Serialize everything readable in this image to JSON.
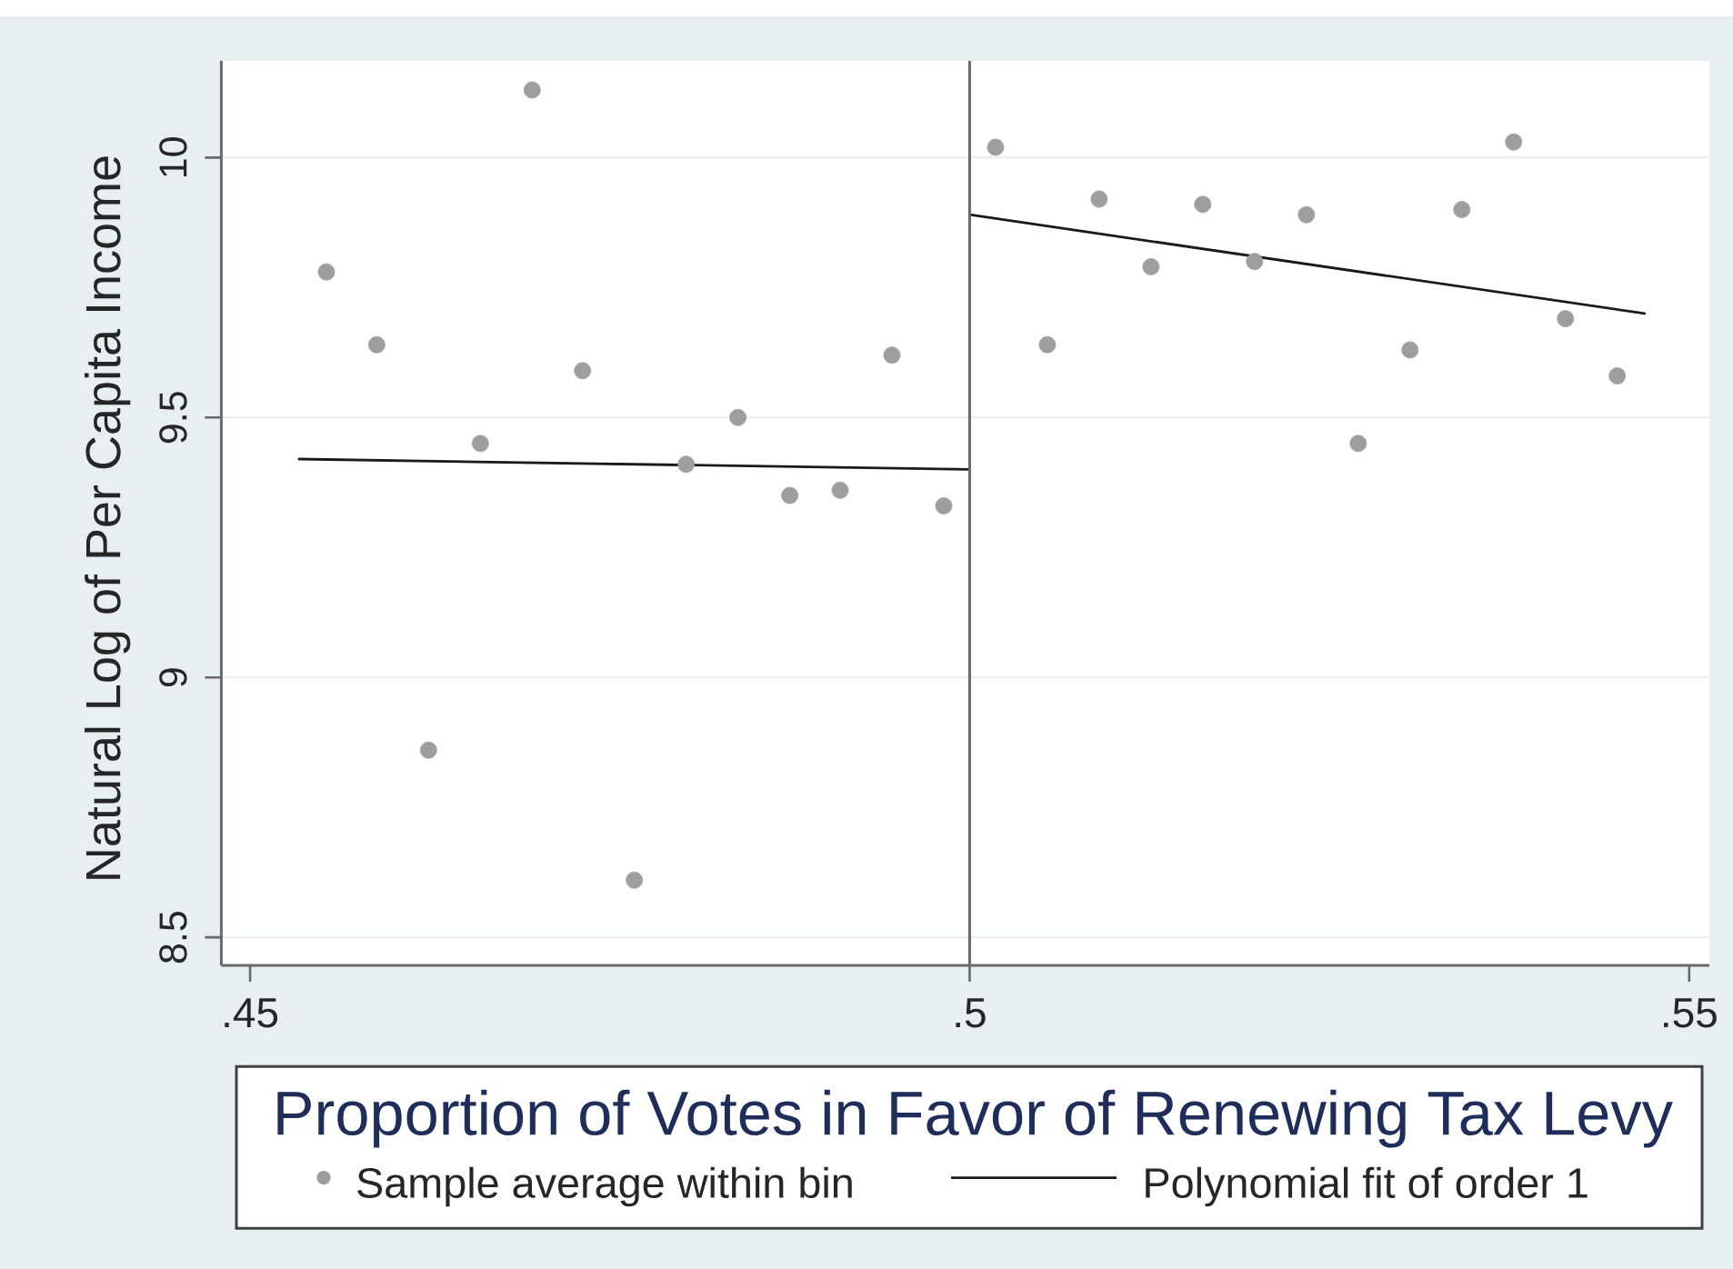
{
  "chart_data": {
    "type": "scatter",
    "ylabel": "Natural Log of Per Capita Income",
    "legend_title": "Proportion of Votes in Favor of Renewing Tax Levy",
    "series": [
      {
        "name": "Sample average within bin",
        "color": "#9e9e9e",
        "marker": "circle",
        "x": [
          0.4553,
          0.4588,
          0.4624,
          0.466,
          0.4696,
          0.4731,
          0.4767,
          0.4803,
          0.4839,
          0.4875,
          0.491,
          0.4946,
          0.4982,
          0.5018,
          0.5054,
          0.509,
          0.5126,
          0.5162,
          0.5198,
          0.5234,
          0.527,
          0.5306,
          0.5342,
          0.5378,
          0.5414,
          0.545
        ],
        "values": [
          9.78,
          9.64,
          8.86,
          9.45,
          10.13,
          9.59,
          8.61,
          9.41,
          9.5,
          9.35,
          9.36,
          9.62,
          9.33,
          10.02,
          9.64,
          9.92,
          9.79,
          9.91,
          9.8,
          9.89,
          9.45,
          9.63,
          9.9,
          10.03,
          9.69,
          9.58
        ]
      },
      {
        "name": "Polynomial fit of order 1",
        "type": "line",
        "color": "#1a1a1a",
        "marker": "none",
        "x": [
          0.4534,
          0.5
        ],
        "values": [
          9.42,
          9.4
        ]
      },
      {
        "type": "line",
        "color": "#1a1a1a",
        "marker": "none",
        "x": [
          0.5,
          0.5469
        ],
        "values": [
          9.89,
          9.7
        ]
      }
    ],
    "xlim": [
      0.448,
      0.5514
    ],
    "ylim": [
      8.446,
      10.186
    ],
    "xticks": [
      {
        "value": 0.45,
        "label": ".45"
      },
      {
        "value": 0.5,
        "label": ".5"
      },
      {
        "value": 0.55,
        "label": ".55"
      }
    ],
    "yticks": [
      8.5,
      9,
      9.5,
      10
    ],
    "ref_lines": [
      {
        "axis": "x",
        "value": 0.5,
        "color": "#696969"
      }
    ],
    "grid": "y",
    "legend": "bottom"
  }
}
